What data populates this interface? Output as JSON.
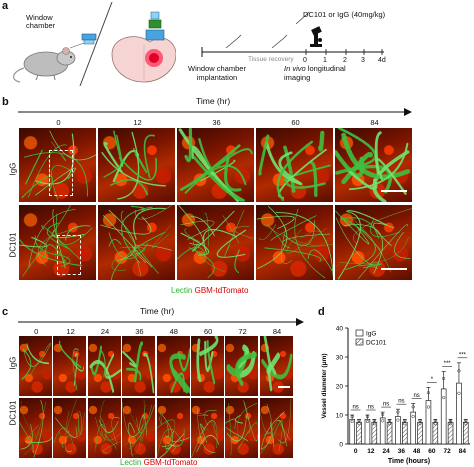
{
  "panel_a": {
    "label": "a",
    "window_chamber": "Window\nchamber",
    "treatment": "DC101 or IgG (40mg/kg)",
    "tissue_recovery": "Tissue recovery",
    "ticks": [
      "0",
      "1",
      "2",
      "3",
      "4d"
    ],
    "implantation": "Window chamber\nimplantation",
    "imaging_italic": "In vivo",
    "imaging_rest": " longitudinal\nimaging"
  },
  "panel_b": {
    "label": "b",
    "time_title": "Time (hr)",
    "times": [
      "0",
      "12",
      "36",
      "60",
      "84"
    ],
    "rows": [
      "IgG",
      "DC101"
    ],
    "legend_lectin": "Lectin",
    "legend_gbm": "GBM-tdTomato"
  },
  "panel_c": {
    "label": "c",
    "time_title": "Time (hr)",
    "times": [
      "0",
      "12",
      "24",
      "36",
      "48",
      "60",
      "72",
      "84"
    ],
    "rows": [
      "IgG",
      "DC101"
    ],
    "legend_lectin": "Lectin",
    "legend_gbm": "GBM-tdTomato"
  },
  "panel_d": {
    "label": "d",
    "chart_data": {
      "type": "bar",
      "categories": [
        "0",
        "12",
        "24",
        "36",
        "48",
        "60",
        "72",
        "84"
      ],
      "series": [
        {
          "name": "IgG",
          "values": [
            8.5,
            8.5,
            9,
            9.5,
            11,
            15,
            19,
            21
          ],
          "err": [
            1.5,
            1.5,
            2,
            2.5,
            3,
            4.5,
            6,
            7
          ]
        },
        {
          "name": "DC101",
          "values": [
            7.5,
            7.5,
            7.5,
            7.5,
            7.5,
            7.5,
            7.5,
            7.5
          ],
          "err": [
            1,
            1,
            1,
            1,
            1,
            1,
            1,
            1
          ]
        }
      ],
      "significance": [
        "ns",
        "ns",
        "ns",
        "ns",
        "ns",
        "*",
        "***",
        "***"
      ],
      "xlabel": "Time (hours)",
      "ylabel": "Vessel diameter (μm)",
      "ylim": [
        0,
        40
      ],
      "yticks": [
        "0",
        "10",
        "20",
        "30",
        "40"
      ],
      "legend": "top-left"
    }
  }
}
